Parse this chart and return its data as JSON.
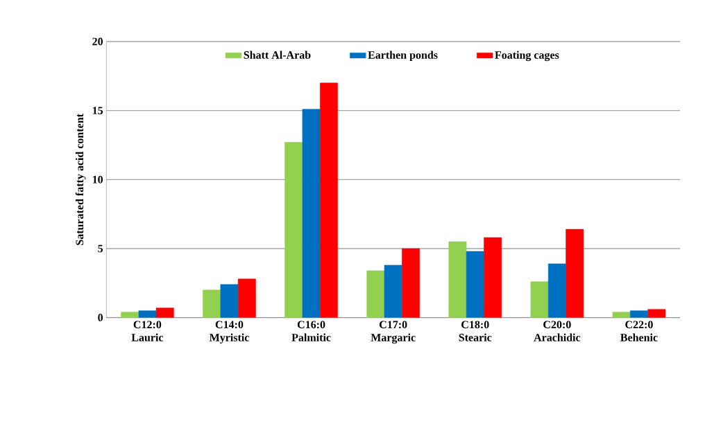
{
  "chart_data": {
    "type": "bar",
    "ylabel": "Saturated fatty acid content",
    "categories": [
      "C12:0 Lauric",
      "C14:0 Myristic",
      "C16:0 Palmitic",
      "C17:0 Margaric",
      "C18:0 Stearic",
      "C20:0 Arachidic",
      "C22:0 Behenic"
    ],
    "series": [
      {
        "name": "Shatt Al-Arab",
        "color": "#92d050",
        "values": [
          0.4,
          2.0,
          12.7,
          3.4,
          5.5,
          2.6,
          0.4
        ]
      },
      {
        "name": "Earthen ponds",
        "color": "#0070c0",
        "values": [
          0.5,
          2.4,
          15.1,
          3.8,
          4.8,
          3.9,
          0.5
        ]
      },
      {
        "name": "Foating cages",
        "color": "#ff0000",
        "values": [
          0.7,
          2.8,
          17.0,
          5.0,
          5.8,
          6.4,
          0.6
        ]
      }
    ],
    "ylim": [
      0,
      20
    ],
    "yticks": [
      0,
      5,
      10,
      15,
      20
    ],
    "grid": "y",
    "legend": "top"
  }
}
